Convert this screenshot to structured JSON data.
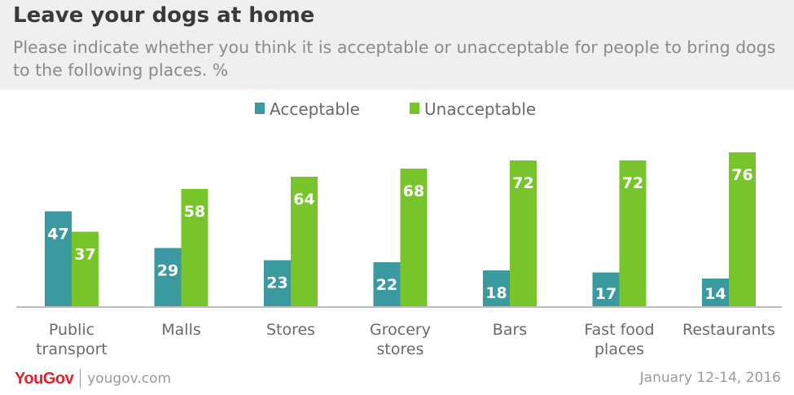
{
  "header": {
    "title": "Leave your dogs at home",
    "subtitle": "Please indicate whether you think it is acceptable or unacceptable for people to bring dogs to the following places. %"
  },
  "footer": {
    "brand": "YouGov",
    "site": "yougov.com",
    "date": "January 12-14, 2016"
  },
  "chart_data": {
    "type": "bar",
    "categories": [
      [
        "Public",
        "transport"
      ],
      [
        "Malls"
      ],
      [
        "Stores"
      ],
      [
        "Grocery",
        "stores"
      ],
      [
        "Bars"
      ],
      [
        "Fast food",
        "places"
      ],
      [
        "Restaurants"
      ]
    ],
    "series": [
      {
        "name": "Acceptable",
        "color": "#3b9aa0",
        "values": [
          47,
          29,
          23,
          22,
          18,
          17,
          14
        ]
      },
      {
        "name": "Unacceptable",
        "color": "#77c52a",
        "values": [
          37,
          58,
          64,
          68,
          72,
          72,
          76
        ]
      }
    ],
    "legend_position": "top",
    "data_labels": true,
    "ylim": [
      0,
      80
    ],
    "grid": false
  }
}
